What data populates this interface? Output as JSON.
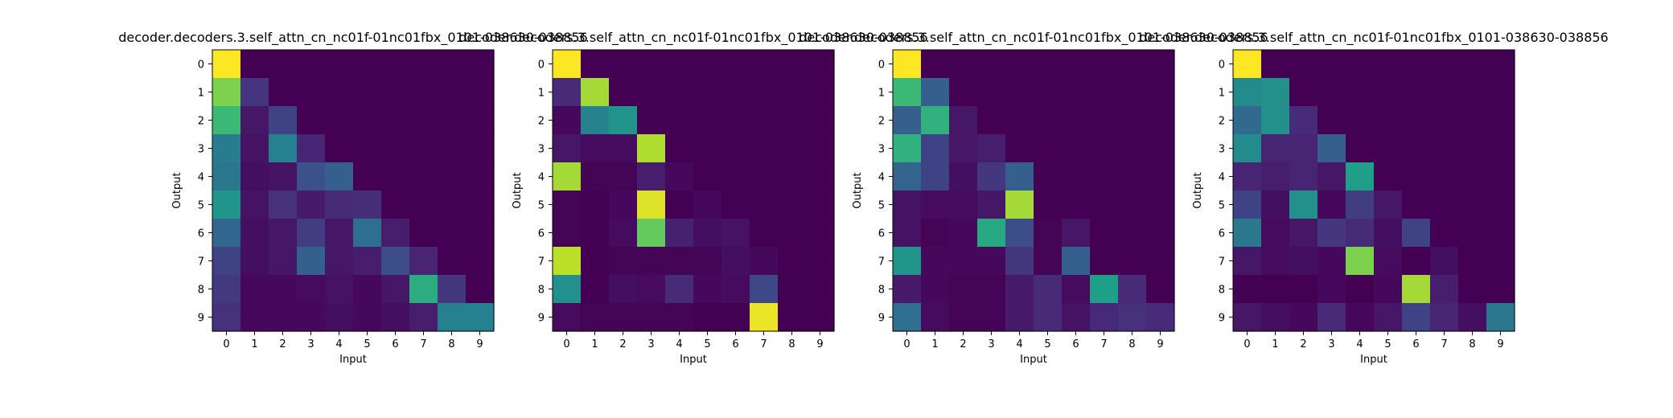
{
  "figure": {
    "colormap": "viridis",
    "colormap_stops": [
      "#440154",
      "#482878",
      "#3e4989",
      "#31688e",
      "#26828e",
      "#1f9e89",
      "#35b779",
      "#6ece58",
      "#b5de2b",
      "#fde725"
    ]
  },
  "chart_data": [
    {
      "type": "heatmap",
      "title": "decoder.decoders.3.self_attn_cn_nc01f-01nc01fbx_0101-038630-038856",
      "xlabel": "Input",
      "ylabel": "Output",
      "x_ticks": [
        "0",
        "1",
        "2",
        "3",
        "4",
        "5",
        "6",
        "7",
        "8",
        "9"
      ],
      "y_ticks": [
        "0",
        "1",
        "2",
        "3",
        "4",
        "5",
        "6",
        "7",
        "8",
        "9"
      ],
      "values": [
        [
          1.0,
          0,
          0,
          0,
          0,
          0,
          0,
          0,
          0,
          0
        ],
        [
          0.8,
          0.15,
          0,
          0,
          0,
          0,
          0,
          0,
          0,
          0
        ],
        [
          0.68,
          0.06,
          0.2,
          0,
          0,
          0,
          0,
          0,
          0,
          0
        ],
        [
          0.42,
          0.05,
          0.44,
          0.1,
          0,
          0,
          0,
          0,
          0,
          0
        ],
        [
          0.4,
          0.04,
          0.05,
          0.25,
          0.3,
          0,
          0,
          0,
          0,
          0
        ],
        [
          0.52,
          0.05,
          0.14,
          0.07,
          0.12,
          0.13,
          0,
          0,
          0,
          0
        ],
        [
          0.33,
          0.04,
          0.06,
          0.18,
          0.06,
          0.36,
          0.08,
          0,
          0,
          0
        ],
        [
          0.2,
          0.04,
          0.06,
          0.3,
          0.06,
          0.08,
          0.24,
          0.1,
          0,
          0
        ],
        [
          0.17,
          0.02,
          0.02,
          0.03,
          0.05,
          0.02,
          0.06,
          0.62,
          0.16,
          0
        ],
        [
          0.14,
          0.02,
          0.02,
          0.02,
          0.04,
          0.02,
          0.04,
          0.08,
          0.44,
          0.44
        ]
      ],
      "range": [
        0,
        1
      ]
    },
    {
      "type": "heatmap",
      "title": "decoder.decoders.3.self_attn_cn_nc01f-01nc01fbx_0101-038630-038856",
      "xlabel": "Input",
      "ylabel": "Output",
      "x_ticks": [
        "0",
        "1",
        "2",
        "3",
        "4",
        "5",
        "6",
        "7",
        "8",
        "9"
      ],
      "y_ticks": [
        "0",
        "1",
        "2",
        "3",
        "4",
        "5",
        "6",
        "7",
        "8",
        "9"
      ],
      "values": [
        [
          1.0,
          0,
          0,
          0,
          0,
          0,
          0,
          0,
          0,
          0
        ],
        [
          0.12,
          0.86,
          0,
          0,
          0,
          0,
          0,
          0,
          0,
          0
        ],
        [
          0.02,
          0.45,
          0.52,
          0,
          0,
          0,
          0,
          0,
          0,
          0
        ],
        [
          0.06,
          0.03,
          0.03,
          0.88,
          0,
          0,
          0,
          0,
          0,
          0
        ],
        [
          0.86,
          0.01,
          0.01,
          0.08,
          0.02,
          0,
          0,
          0,
          0,
          0
        ],
        [
          0.01,
          0.0,
          0.02,
          0.95,
          0.0,
          0.02,
          0,
          0,
          0,
          0
        ],
        [
          0.01,
          0.0,
          0.03,
          0.76,
          0.09,
          0.04,
          0.05,
          0,
          0,
          0
        ],
        [
          0.9,
          0.0,
          0.01,
          0.01,
          0.01,
          0.01,
          0.04,
          0.02,
          0,
          0
        ],
        [
          0.5,
          0.0,
          0.04,
          0.03,
          0.12,
          0.02,
          0.03,
          0.22,
          0.0,
          0
        ],
        [
          0.03,
          0.01,
          0.01,
          0.01,
          0.01,
          0.0,
          0.0,
          0.97,
          0.0,
          0.0
        ]
      ],
      "range": [
        0,
        1
      ]
    },
    {
      "type": "heatmap",
      "title": "decoder.decoders.3.self_attn_cn_nc01f-01nc01fbx_0101-038630-038856",
      "xlabel": "Input",
      "ylabel": "Output",
      "x_ticks": [
        "0",
        "1",
        "2",
        "3",
        "4",
        "5",
        "6",
        "7",
        "8",
        "9"
      ],
      "y_ticks": [
        "0",
        "1",
        "2",
        "3",
        "4",
        "5",
        "6",
        "7",
        "8",
        "9"
      ],
      "values": [
        [
          1.0,
          0,
          0,
          0,
          0,
          0,
          0,
          0,
          0,
          0
        ],
        [
          0.68,
          0.3,
          0,
          0,
          0,
          0,
          0,
          0,
          0,
          0
        ],
        [
          0.3,
          0.64,
          0.06,
          0,
          0,
          0,
          0,
          0,
          0,
          0
        ],
        [
          0.64,
          0.2,
          0.06,
          0.08,
          0,
          0,
          0,
          0,
          0,
          0
        ],
        [
          0.32,
          0.2,
          0.04,
          0.16,
          0.3,
          0,
          0,
          0,
          0,
          0
        ],
        [
          0.05,
          0.03,
          0.03,
          0.06,
          0.86,
          0,
          0,
          0,
          0,
          0
        ],
        [
          0.05,
          0.01,
          0.02,
          0.6,
          0.24,
          0.01,
          0.06,
          0,
          0,
          0
        ],
        [
          0.52,
          0.02,
          0.02,
          0.02,
          0.16,
          0.01,
          0.3,
          0.0,
          0,
          0
        ],
        [
          0.07,
          0.02,
          0.01,
          0.01,
          0.07,
          0.12,
          0.03,
          0.56,
          0.12,
          0
        ],
        [
          0.36,
          0.03,
          0.01,
          0.01,
          0.07,
          0.12,
          0.05,
          0.11,
          0.14,
          0.12
        ]
      ],
      "range": [
        0,
        1
      ]
    },
    {
      "type": "heatmap",
      "title": "decoder.decoders.3.self_attn_cn_nc01f-01nc01fbx_0101-038630-038856",
      "xlabel": "Input",
      "ylabel": "Output",
      "x_ticks": [
        "0",
        "1",
        "2",
        "3",
        "4",
        "5",
        "6",
        "7",
        "8",
        "9"
      ],
      "y_ticks": [
        "0",
        "1",
        "2",
        "3",
        "4",
        "5",
        "6",
        "7",
        "8",
        "9"
      ],
      "values": [
        [
          1.0,
          0,
          0,
          0,
          0,
          0,
          0,
          0,
          0,
          0
        ],
        [
          0.48,
          0.5,
          0,
          0,
          0,
          0,
          0,
          0,
          0,
          0
        ],
        [
          0.34,
          0.5,
          0.12,
          0,
          0,
          0,
          0,
          0,
          0,
          0
        ],
        [
          0.48,
          0.1,
          0.1,
          0.3,
          0,
          0,
          0,
          0,
          0,
          0
        ],
        [
          0.1,
          0.08,
          0.1,
          0.06,
          0.56,
          0,
          0,
          0,
          0,
          0
        ],
        [
          0.2,
          0.04,
          0.5,
          0.02,
          0.18,
          0.06,
          0,
          0,
          0,
          0
        ],
        [
          0.4,
          0.03,
          0.06,
          0.16,
          0.12,
          0.04,
          0.2,
          0,
          0,
          0
        ],
        [
          0.06,
          0.03,
          0.04,
          0.02,
          0.8,
          0.03,
          0.0,
          0.04,
          0,
          0
        ],
        [
          0.0,
          0.0,
          0.0,
          0.02,
          0.0,
          0.02,
          0.86,
          0.08,
          0.0,
          0
        ],
        [
          0.06,
          0.04,
          0.02,
          0.12,
          0.02,
          0.06,
          0.2,
          0.1,
          0.04,
          0.4
        ]
      ],
      "range": [
        0,
        1
      ]
    }
  ]
}
